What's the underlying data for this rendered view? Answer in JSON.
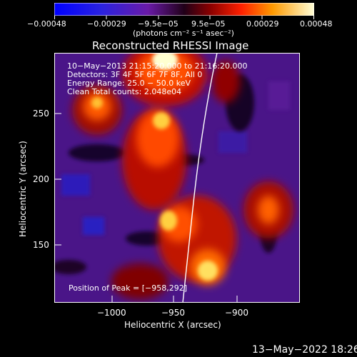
{
  "colorbar": {
    "tick_labels": [
      "−0.00048",
      "−0.00029",
      "−9.5e−05",
      "9.5e−05",
      "0.00029",
      "0.00048"
    ],
    "units": "(photons cm⁻² s⁻¹ asec⁻²)"
  },
  "image": {
    "title": "Reconstructed RHESSI Image",
    "info_lines": [
      "10−May−2013 21:15:20.000 to 21:16:20.000",
      "Detectors: 3F 4F 5F 6F 7F 8F, All 0",
      "Energy Range: 25.0 − 50.0 keV",
      "Clean    Total counts: 2.048e04"
    ],
    "peak_label": "Position of Peak = [−958,292]"
  },
  "axes": {
    "xlabel": "Heliocentric X (arcsec)",
    "ylabel": "Heliocentric Y (arcsec)",
    "x_ticks": [
      "−1000",
      "−950",
      "−900"
    ],
    "y_ticks": [
      "250",
      "200",
      "150"
    ]
  },
  "footer": {
    "date": "13−May−2022 18:26"
  }
}
